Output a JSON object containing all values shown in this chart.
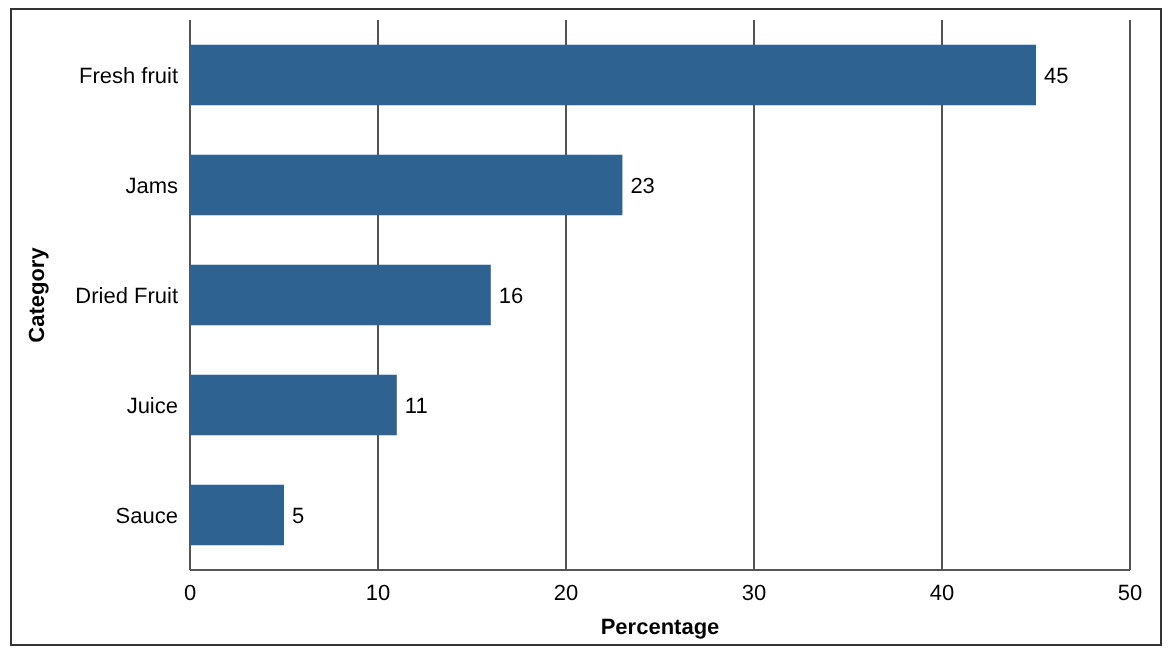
{
  "chart_data": {
    "type": "bar",
    "orientation": "horizontal",
    "xlabel": "Percentage",
    "ylabel": "Category",
    "categories": [
      "Fresh fruit",
      "Jams",
      "Dried Fruit",
      "Juice",
      "Sauce"
    ],
    "values": [
      45,
      23,
      16,
      11,
      5
    ],
    "color": "#2e6291",
    "xlim": [
      0,
      50
    ],
    "xticks": [
      0,
      10,
      20,
      30,
      40,
      50
    ],
    "grid": "x",
    "data_labels": true
  }
}
